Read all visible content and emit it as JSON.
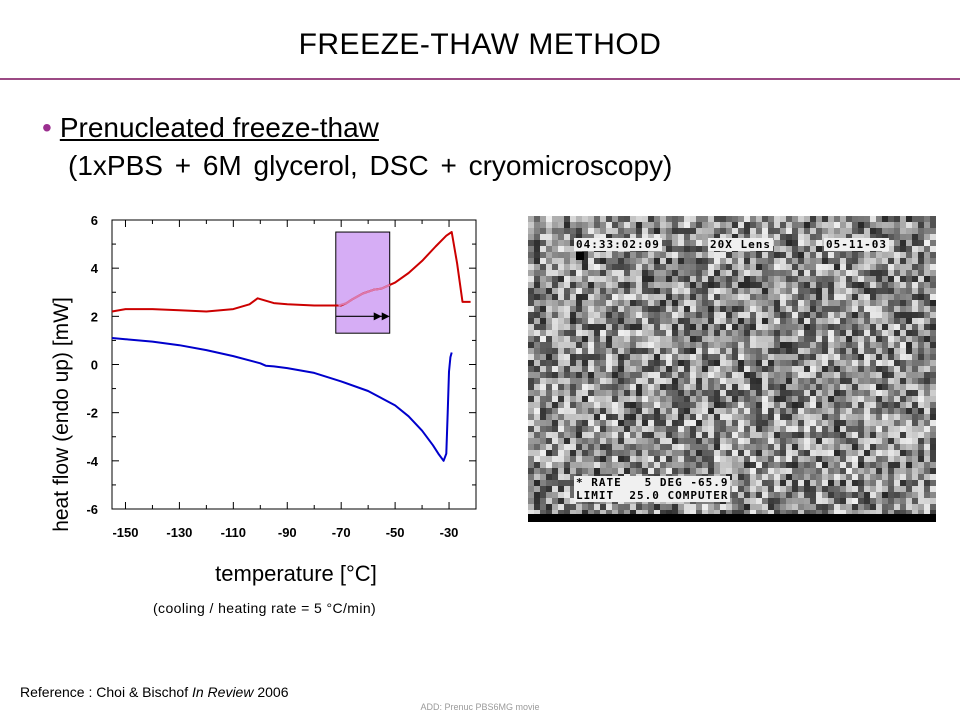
{
  "slide": {
    "title": "FREEZE-THAW METHOD",
    "bullet": "Prenucleated freeze-thaw",
    "subline": "(1xPBS + 6M glycerol, DSC + cryomicroscopy)",
    "rate_note": "(cooling / heating rate = 5 °C/min)",
    "reference_prefix": "Reference : Choi & Bischof ",
    "reference_italic": "In Review",
    "reference_suffix": " 2006",
    "footer_note": "ADD: Prenuc PBS6MG movie",
    "accent_color": "#9b2f8f",
    "rule_color": "#9b4a84"
  },
  "micrograph": {
    "timestamp": "04:33:02:09",
    "lens": "20X Lens",
    "date": "05-11-03",
    "rate_line": "* RATE   5 DEG -65.9",
    "limit_line": "LIMIT  25.0 COMPUTER"
  },
  "chart_data": {
    "type": "line",
    "xlabel": "temperature [°C]",
    "ylabel": "heat flow (endo up) [mW]",
    "xlim": [
      -155,
      -20
    ],
    "ylim": [
      -6,
      6
    ],
    "xticks": [
      -150,
      -130,
      -110,
      -90,
      -70,
      -50,
      -30
    ],
    "yticks": [
      6,
      4,
      2,
      0,
      -2,
      -4,
      -6
    ],
    "grid": false,
    "series": [
      {
        "color": "#cc0000",
        "x": [
          -155,
          -150,
          -140,
          -130,
          -120,
          -110,
          -104,
          -101,
          -98,
          -95,
          -90,
          -80,
          -70,
          -68,
          -66,
          -62,
          -58,
          -55,
          -50,
          -45,
          -40,
          -35,
          -31,
          -29,
          -27,
          -25,
          -22
        ],
        "y": [
          2.2,
          2.3,
          2.3,
          2.25,
          2.2,
          2.3,
          2.5,
          2.75,
          2.65,
          2.55,
          2.5,
          2.45,
          2.45,
          2.55,
          2.7,
          2.95,
          3.1,
          3.15,
          3.4,
          3.8,
          4.3,
          4.9,
          5.35,
          5.5,
          4.2,
          2.6,
          2.6
        ]
      },
      {
        "color": "#0000cc",
        "x": [
          -155,
          -150,
          -140,
          -130,
          -120,
          -110,
          -100,
          -98,
          -95,
          -90,
          -80,
          -70,
          -60,
          -50,
          -45,
          -40,
          -36,
          -34,
          -32,
          -31,
          -30.5,
          -30,
          -29.5,
          -29
        ],
        "y": [
          1.1,
          1.05,
          0.95,
          0.8,
          0.6,
          0.35,
          0.05,
          -0.05,
          -0.08,
          -0.15,
          -0.35,
          -0.7,
          -1.1,
          -1.7,
          -2.15,
          -2.75,
          -3.35,
          -3.7,
          -4.0,
          -3.7,
          -2.0,
          -0.3,
          0.3,
          0.5
        ]
      }
    ],
    "highlight_range": [
      -72,
      -52
    ],
    "highlight_color": "#d6adf5",
    "overlay_series": {
      "color": "#dd77aa",
      "x": [
        -71,
        -68,
        -66,
        -62,
        -58,
        -55,
        -52
      ],
      "y": [
        2.45,
        2.55,
        2.7,
        2.95,
        3.1,
        3.15,
        3.3
      ]
    }
  }
}
